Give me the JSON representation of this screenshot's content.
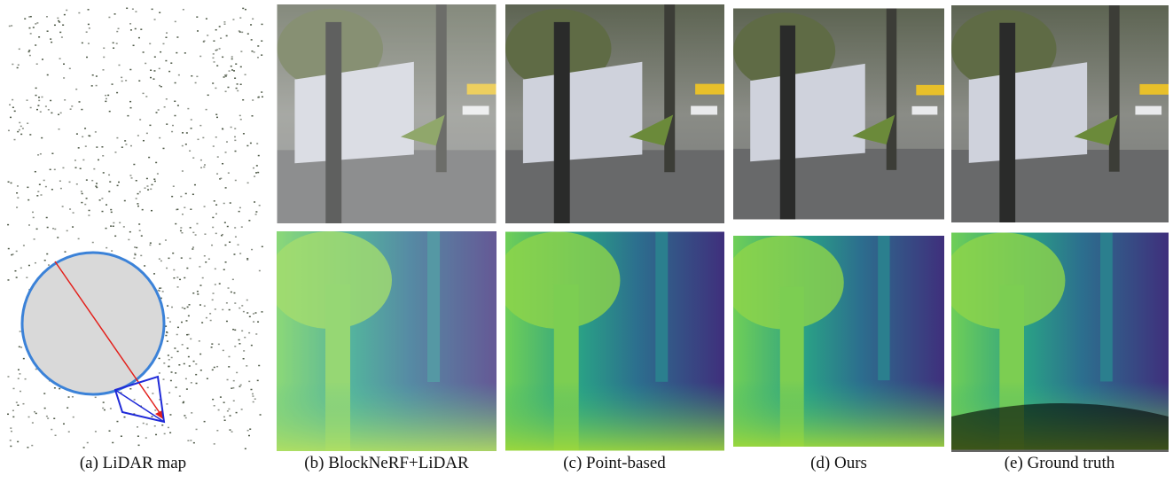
{
  "panels": [
    {
      "caption": "(a) LiDAR map"
    },
    {
      "caption": "(b) BlockNeRF+LiDAR"
    },
    {
      "caption": "(c) Point-based"
    },
    {
      "caption": "(d) Ours"
    },
    {
      "caption": "(e) Ground truth"
    }
  ]
}
